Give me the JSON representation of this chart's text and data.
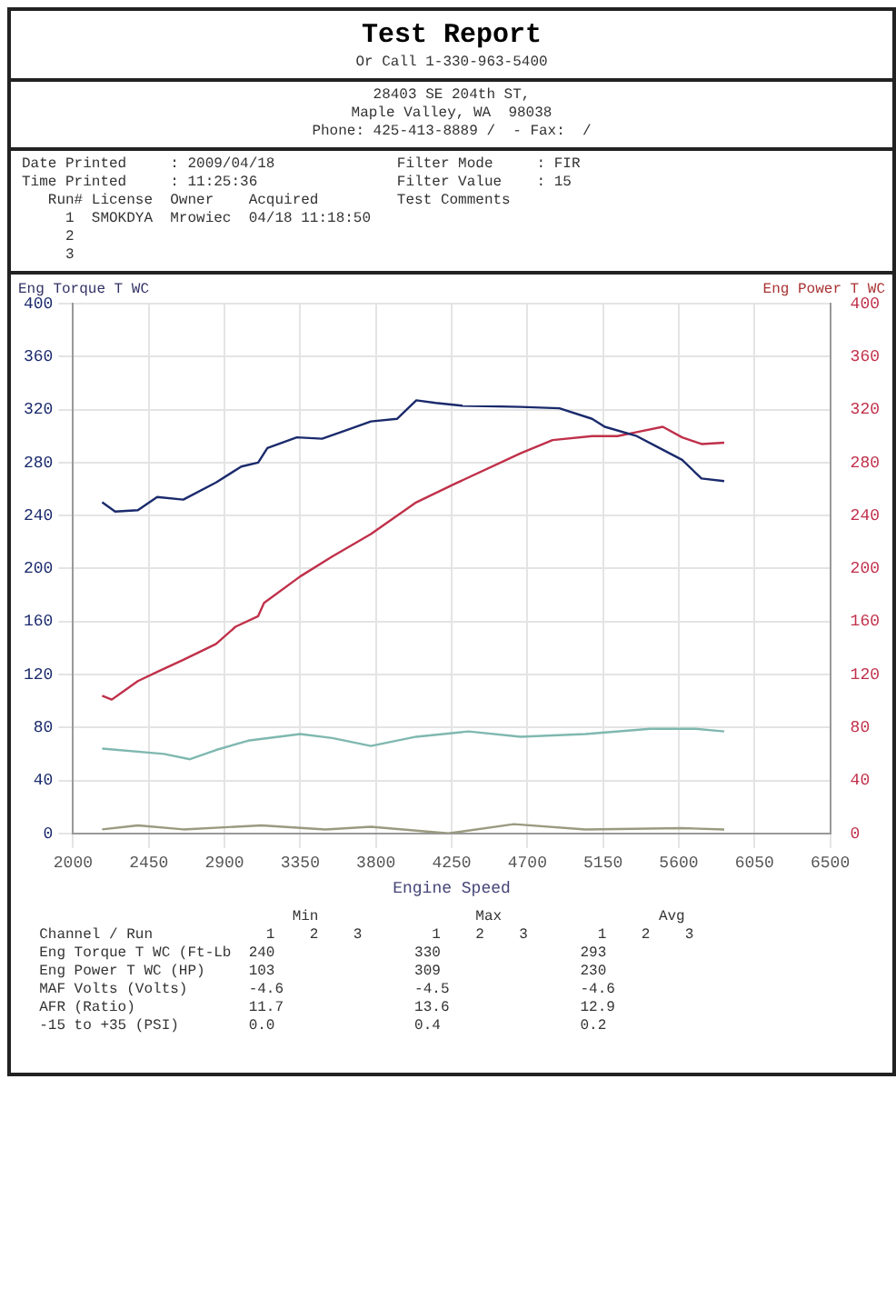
{
  "chart_data": {
    "type": "line",
    "title": "Test Report",
    "xlabel": "Engine Speed",
    "ylabel": "Eng Torque T WC",
    "y2label": "Eng Power T WC",
    "annotations": [
      "Or Call 1-330-963-5400",
      "28403 SE 204th ST,",
      "Maple Valley, WA  98038",
      "Phone: 425-413-8889 /  - Fax:  /",
      "Date Printed     : 2009/04/18              Filter Mode     : FIR",
      "Time Printed     : 11:25:36                Filter Value    : 15",
      "   Run# License  Owner    Acquired         Test Comments",
      "     1  SMOKDYA  Mrowiec  04/18 11:18:50",
      "     2",
      "     3",
      "                               Min                  Max                  Avg",
      "  Channel / Run             1    2    3        1    2    3        1    2    3",
      "  Eng Torque T WC (Ft-Lb  240                330                293",
      "  Eng Power T WC (HP)     103                309                230",
      "  MAF Volts (Volts)       -4.6               -4.5               -4.6",
      "  AFR (Ratio)             11.7               13.6               12.9",
      "  -15 to +35 (PSI)        0.0                0.4                0.2"
    ],
    "xlim": [
      2000,
      6500
    ],
    "xticks": [
      2000,
      2450,
      2900,
      3350,
      3800,
      4250,
      4700,
      5150,
      5600,
      6050,
      6500
    ],
    "ylim": [
      0,
      400
    ],
    "yticks": [
      0,
      40,
      80,
      120,
      160,
      200,
      240,
      280,
      320,
      360,
      400
    ],
    "y2lim": [
      0,
      400
    ],
    "y2ticks": [
      0,
      40,
      80,
      120,
      160,
      200,
      240,
      280,
      320,
      360,
      400
    ],
    "grid": true,
    "legend": false,
    "marker": "none",
    "line_style": "solid",
    "series": [
      {
        "color": "#1a2a6c",
        "x": [
          2173,
          2250,
          2385,
          2500,
          2655,
          2850,
          3000,
          3100,
          3155,
          3330,
          3480,
          3615,
          3770,
          3925,
          4040,
          4155,
          4310,
          4660,
          4890,
          5085,
          5160,
          5350,
          5470,
          5620,
          5735,
          5870
        ],
        "values": [
          250,
          243,
          244,
          254,
          252,
          265,
          277,
          280,
          291,
          299,
          298,
          304,
          311,
          313,
          327,
          325,
          323,
          322,
          321,
          313,
          307,
          300,
          292,
          282,
          268,
          266
        ]
      },
      {
        "color": "#c0304a",
        "axis": "y2",
        "x": [
          2173,
          2230,
          2385,
          2500,
          2655,
          2850,
          2965,
          3100,
          3135,
          3350,
          3540,
          3770,
          4040,
          4270,
          4660,
          4850,
          5085,
          5235,
          5350,
          5505,
          5620,
          5735,
          5870
        ],
        "values": [
          104,
          101,
          115,
          122,
          131,
          143,
          156,
          164,
          174,
          194,
          209,
          226,
          250,
          264,
          287,
          297,
          300,
          300,
          303,
          307,
          299,
          294,
          295
        ]
      },
      {
        "color": "#7fb8b0",
        "x": [
          2173,
          2540,
          2695,
          2850,
          3040,
          3350,
          3540,
          3770,
          4040,
          4350,
          4660,
          5045,
          5430,
          5700,
          5870
        ],
        "values": [
          64,
          60,
          56,
          63,
          70,
          75,
          72,
          66,
          73,
          77,
          73,
          75,
          79,
          79,
          77
        ]
      },
      {
        "color": "#9a9a80",
        "x": [
          2173,
          2385,
          2655,
          3120,
          3500,
          3770,
          4230,
          4620,
          5045,
          5620,
          5870
        ],
        "values": [
          3,
          6,
          3,
          6,
          3,
          5,
          0,
          7,
          3,
          4,
          3
        ]
      }
    ]
  }
}
